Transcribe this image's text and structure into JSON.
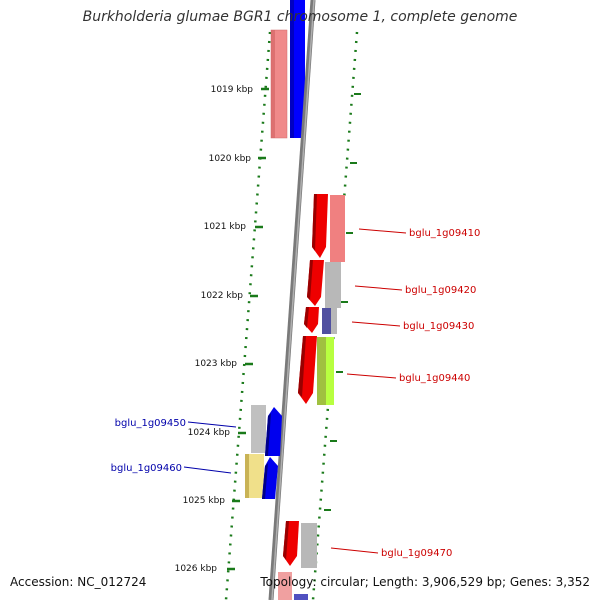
{
  "title": "Burkholderia glumae BGR1 chromosome 1, complete genome",
  "footer": {
    "accession": "Accession: NC_012724",
    "summary": "Topology: circular; Length: 3,906,529 bp; Genes: 3,352"
  },
  "colors": {
    "background": "#ffffff",
    "backbone": "#808080",
    "ticks": "#1a7a1a",
    "label_forward": "#cc0000",
    "label_reverse": "#0000aa"
  },
  "scale_ticks": [
    {
      "label": "1019 kbp"
    },
    {
      "label": "1020 kbp"
    },
    {
      "label": "1021 kbp"
    },
    {
      "label": "1022 kbp"
    },
    {
      "label": "1023 kbp"
    },
    {
      "label": "1024 kbp"
    },
    {
      "label": "1025 kbp"
    },
    {
      "label": "1026 kbp"
    }
  ],
  "gene_labels": [
    {
      "text": "bglu_1g09410",
      "strand": "forward"
    },
    {
      "text": "bglu_1g09420",
      "strand": "forward"
    },
    {
      "text": "bglu_1g09430",
      "strand": "forward"
    },
    {
      "text": "bglu_1g09440",
      "strand": "forward"
    },
    {
      "text": "bglu_1g09450",
      "strand": "reverse"
    },
    {
      "text": "bglu_1g09460",
      "strand": "reverse"
    },
    {
      "text": "bglu_1g09470",
      "strand": "forward"
    }
  ]
}
